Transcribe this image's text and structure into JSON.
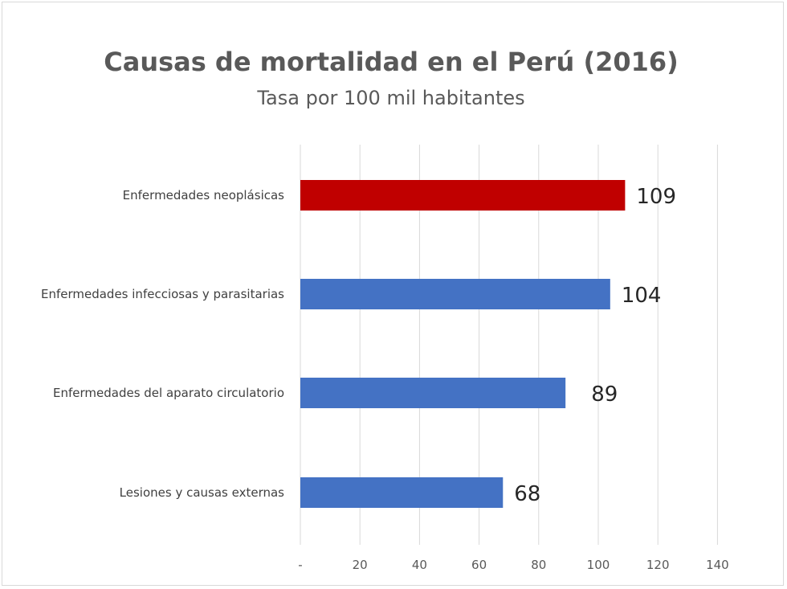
{
  "chart_data": {
    "type": "bar",
    "orientation": "horizontal",
    "title": "Causas de mortalidad en el Perú (2016)",
    "subtitle": "Tasa por 100 mil habitantes",
    "categories": [
      "Enfermedades neoplásicas",
      "Enfermedades infecciosas y parasitarias",
      "Enfermedades del aparato circulatorio",
      "Lesiones y causas externas"
    ],
    "values": [
      109,
      104,
      89,
      68
    ],
    "data_labels": [
      "109",
      "104",
      "89",
      "68"
    ],
    "bar_colors": [
      "#c00000",
      "#4472c4",
      "#4472c4",
      "#4472c4"
    ],
    "xlim": [
      0,
      140
    ],
    "x_ticks": [
      0,
      20,
      40,
      60,
      80,
      100,
      120,
      140
    ],
    "x_tick_labels": [
      "-",
      "20",
      "40",
      "60",
      "80",
      "100",
      "120",
      "140"
    ],
    "grid": "vertical",
    "legend": "none"
  }
}
